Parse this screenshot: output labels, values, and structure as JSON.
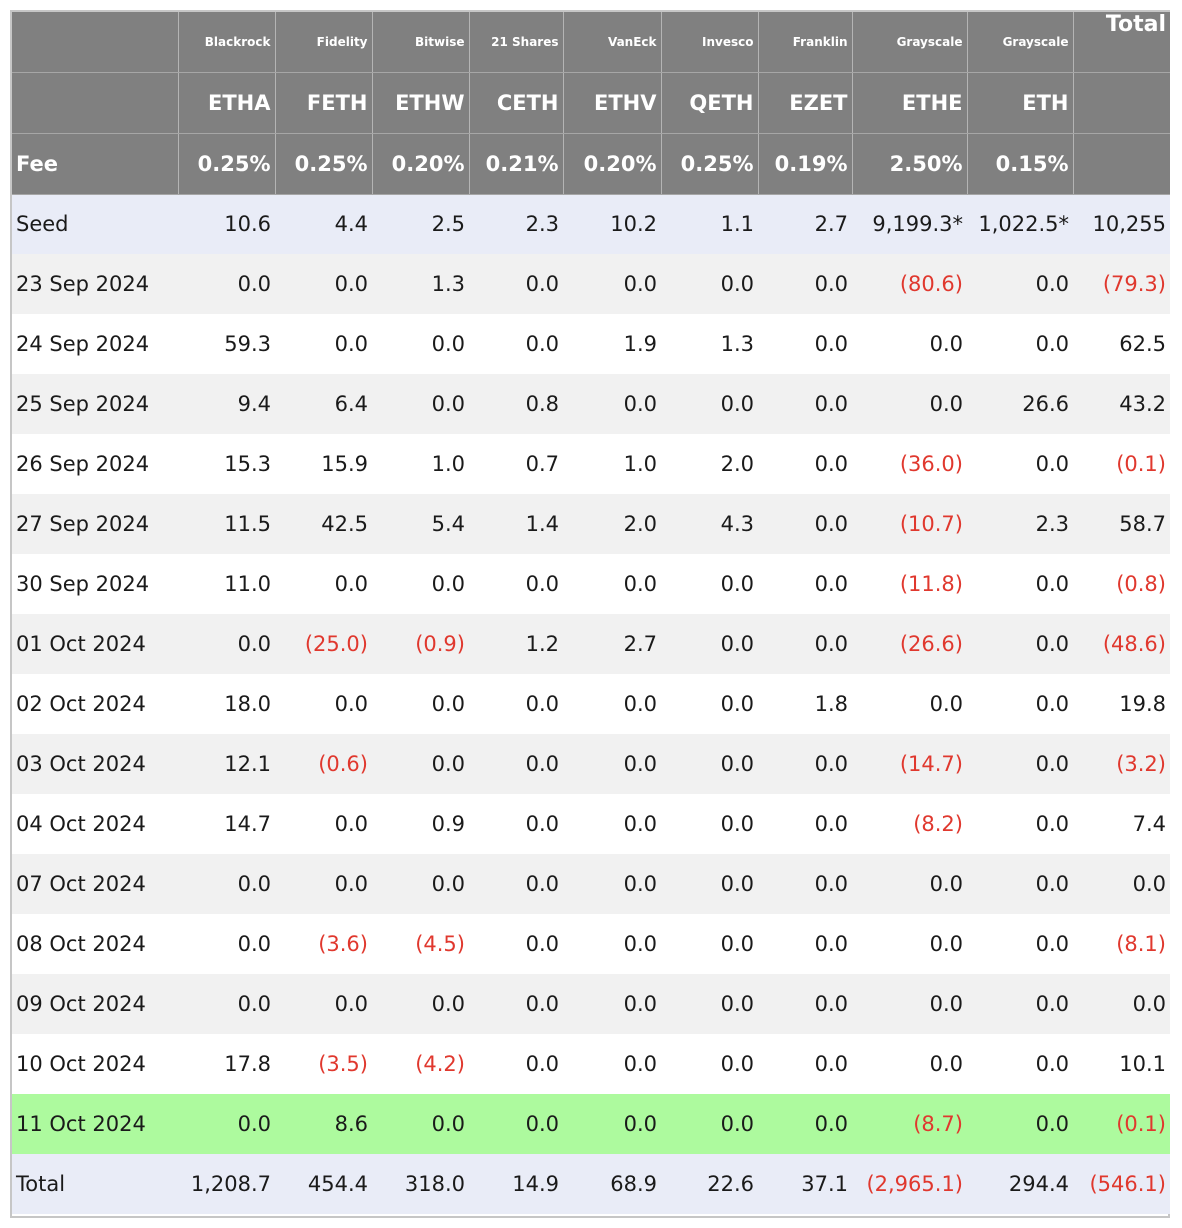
{
  "header": {
    "issuers": [
      "Blackrock",
      "Fidelity",
      "Bitwise",
      "21 Shares",
      "VanEck",
      "Invesco",
      "Franklin",
      "Grayscale",
      "Grayscale"
    ],
    "total_label": "Total",
    "tickers": [
      "ETHA",
      "FETH",
      "ETHW",
      "CETH",
      "ETHV",
      "QETH",
      "EZET",
      "ETHE",
      "ETH"
    ],
    "fee_label": "Fee",
    "fees": [
      "0.25%",
      "0.25%",
      "0.20%",
      "0.21%",
      "0.20%",
      "0.25%",
      "0.19%",
      "2.50%",
      "0.15%"
    ]
  },
  "rows": [
    {
      "label": "Seed",
      "cells": [
        "10.6",
        "4.4",
        "2.5",
        "2.3",
        "10.2",
        "1.1",
        "2.7",
        "9,199.3*",
        "1,022.5*",
        "10,255"
      ]
    },
    {
      "label": "23 Sep 2024",
      "cells": [
        "0.0",
        "0.0",
        "1.3",
        "0.0",
        "0.0",
        "0.0",
        "0.0",
        "(80.6)",
        "0.0",
        "(79.3)"
      ]
    },
    {
      "label": "24 Sep 2024",
      "cells": [
        "59.3",
        "0.0",
        "0.0",
        "0.0",
        "1.9",
        "1.3",
        "0.0",
        "0.0",
        "0.0",
        "62.5"
      ]
    },
    {
      "label": "25 Sep 2024",
      "cells": [
        "9.4",
        "6.4",
        "0.0",
        "0.8",
        "0.0",
        "0.0",
        "0.0",
        "0.0",
        "26.6",
        "43.2"
      ]
    },
    {
      "label": "26 Sep 2024",
      "cells": [
        "15.3",
        "15.9",
        "1.0",
        "0.7",
        "1.0",
        "2.0",
        "0.0",
        "(36.0)",
        "0.0",
        "(0.1)"
      ]
    },
    {
      "label": "27 Sep 2024",
      "cells": [
        "11.5",
        "42.5",
        "5.4",
        "1.4",
        "2.0",
        "4.3",
        "0.0",
        "(10.7)",
        "2.3",
        "58.7"
      ]
    },
    {
      "label": "30 Sep 2024",
      "cells": [
        "11.0",
        "0.0",
        "0.0",
        "0.0",
        "0.0",
        "0.0",
        "0.0",
        "(11.8)",
        "0.0",
        "(0.8)"
      ]
    },
    {
      "label": "01 Oct 2024",
      "cells": [
        "0.0",
        "(25.0)",
        "(0.9)",
        "1.2",
        "2.7",
        "0.0",
        "0.0",
        "(26.6)",
        "0.0",
        "(48.6)"
      ]
    },
    {
      "label": "02 Oct 2024",
      "cells": [
        "18.0",
        "0.0",
        "0.0",
        "0.0",
        "0.0",
        "0.0",
        "1.8",
        "0.0",
        "0.0",
        "19.8"
      ]
    },
    {
      "label": "03 Oct 2024",
      "cells": [
        "12.1",
        "(0.6)",
        "0.0",
        "0.0",
        "0.0",
        "0.0",
        "0.0",
        "(14.7)",
        "0.0",
        "(3.2)"
      ]
    },
    {
      "label": "04 Oct 2024",
      "cells": [
        "14.7",
        "0.0",
        "0.9",
        "0.0",
        "0.0",
        "0.0",
        "0.0",
        "(8.2)",
        "0.0",
        "7.4"
      ]
    },
    {
      "label": "07 Oct 2024",
      "cells": [
        "0.0",
        "0.0",
        "0.0",
        "0.0",
        "0.0",
        "0.0",
        "0.0",
        "0.0",
        "0.0",
        "0.0"
      ]
    },
    {
      "label": "08 Oct 2024",
      "cells": [
        "0.0",
        "(3.6)",
        "(4.5)",
        "0.0",
        "0.0",
        "0.0",
        "0.0",
        "0.0",
        "0.0",
        "(8.1)"
      ]
    },
    {
      "label": "09 Oct 2024",
      "cells": [
        "0.0",
        "0.0",
        "0.0",
        "0.0",
        "0.0",
        "0.0",
        "0.0",
        "0.0",
        "0.0",
        "0.0"
      ]
    },
    {
      "label": "10 Oct 2024",
      "cells": [
        "17.8",
        "(3.5)",
        "(4.2)",
        "0.0",
        "0.0",
        "0.0",
        "0.0",
        "0.0",
        "0.0",
        "10.1"
      ]
    },
    {
      "label": "11 Oct 2024",
      "cells": [
        "0.0",
        "8.6",
        "0.0",
        "0.0",
        "0.0",
        "0.0",
        "0.0",
        "(8.7)",
        "0.0",
        "(0.1)"
      ]
    },
    {
      "label": "Total",
      "cells": [
        "1,208.7",
        "454.4",
        "318.0",
        "14.9",
        "68.9",
        "22.6",
        "37.1",
        "(2,965.1)",
        "294.4",
        "(546.1)"
      ]
    }
  ],
  "colors": {
    "header_bg": "#808080",
    "header_text": "#ffffff",
    "negative_text": "#e0382e",
    "seed_total_bg": "#e9ecf7",
    "stripe_bg": "#f1f1f1",
    "highlight_bg": "#adfa9e"
  }
}
